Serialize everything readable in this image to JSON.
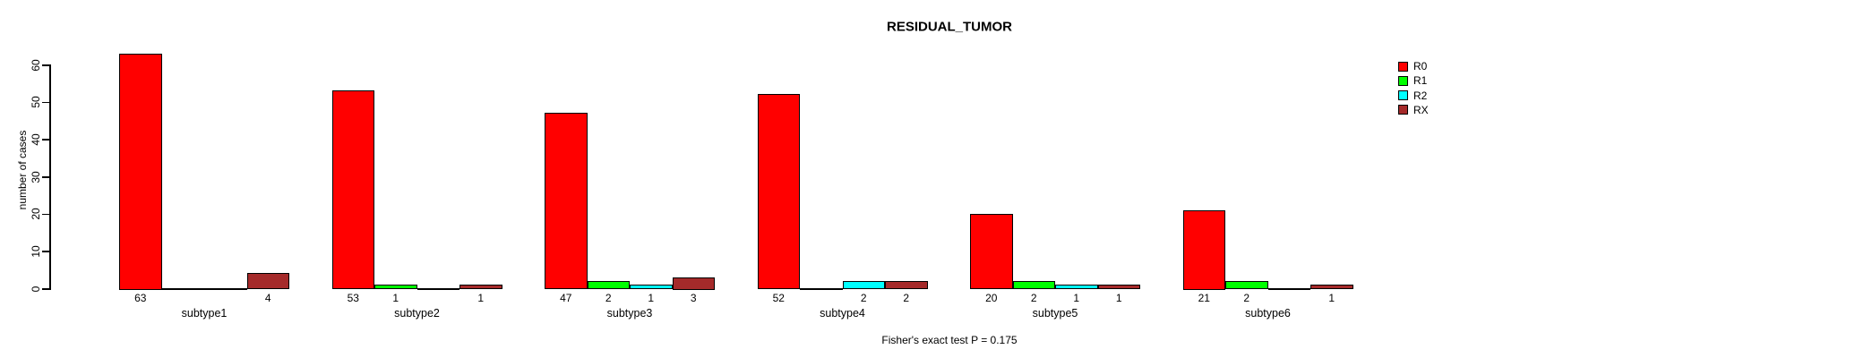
{
  "title": "RESIDUAL_TUMOR",
  "y_axis": {
    "label": "number of cases"
  },
  "footer": "Fisher's exact test P = 0.175",
  "legend": {
    "position": "right",
    "items": [
      {
        "label": "R0",
        "color": "#ff0000"
      },
      {
        "label": "R1",
        "color": "#00ff00"
      },
      {
        "label": "R2",
        "color": "#00ffff"
      },
      {
        "label": "RX",
        "color": "#a52a2a"
      }
    ]
  },
  "chart_data": {
    "type": "bar",
    "title": "RESIDUAL_TUMOR",
    "xlabel": "",
    "ylabel": "number of cases",
    "categories": [
      "subtype1",
      "subtype2",
      "subtype3",
      "subtype4",
      "subtype5",
      "subtype6"
    ],
    "series": [
      {
        "name": "R0",
        "color": "#ff0000",
        "values": [
          63,
          53,
          47,
          52,
          20,
          21
        ]
      },
      {
        "name": "R1",
        "color": "#00ff00",
        "values": [
          0,
          1,
          2,
          0,
          2,
          2
        ]
      },
      {
        "name": "R2",
        "color": "#00ffff",
        "values": [
          0,
          0,
          1,
          2,
          1,
          0
        ]
      },
      {
        "name": "RX",
        "color": "#a52a2a",
        "values": [
          4,
          1,
          3,
          2,
          1,
          1
        ]
      }
    ],
    "ylim": [
      0,
      60
    ],
    "yticks": [
      0,
      10,
      20,
      30,
      40,
      50,
      60
    ],
    "grid": false,
    "legend_position": "right",
    "bar_labels": "value printed below each nonzero bar",
    "zero_bars": "drawn as flat line segment at baseline",
    "annotation": "Fisher's exact test P = 0.175"
  }
}
